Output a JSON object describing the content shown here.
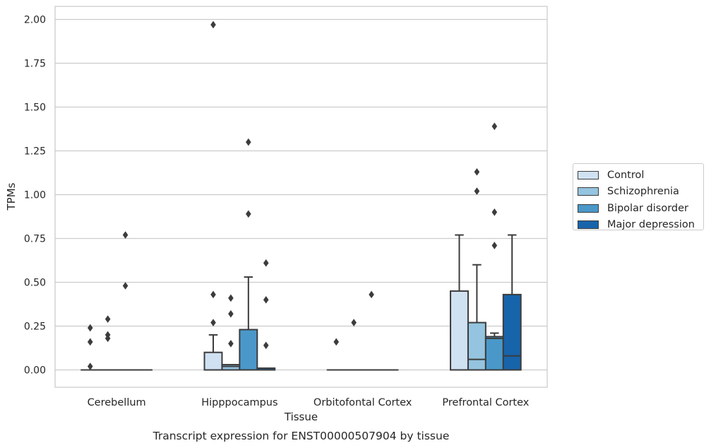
{
  "chart_data": {
    "type": "box",
    "caption": "Transcript expression for ENST00000507904 by tissue",
    "xlabel": "Tissue",
    "ylabel": "TPMs",
    "ylim": [
      -0.1,
      2.07
    ],
    "yticks": [
      "0.00",
      "0.25",
      "0.50",
      "0.75",
      "1.00",
      "1.25",
      "1.50",
      "1.75",
      "2.00"
    ],
    "categories": [
      "Cerebellum",
      "Hipppocampus",
      "Orbitofontal Cortex",
      "Prefrontal Cortex"
    ],
    "grid": true,
    "legend_position": "right",
    "series": [
      {
        "name": "Control",
        "color": "#d0e1f2",
        "boxes": [
          {
            "q1": 0,
            "median": 0,
            "q3": 0,
            "whisker_low": 0,
            "whisker_high": 0,
            "outliers": [
              0.16,
              0.24,
              0.02
            ]
          },
          {
            "q1": 0,
            "median": 0,
            "q3": 0.1,
            "whisker_low": 0,
            "whisker_high": 0.2,
            "outliers": [
              1.97,
              0.43,
              0.27
            ]
          },
          {
            "q1": 0,
            "median": 0,
            "q3": 0,
            "whisker_low": 0,
            "whisker_high": 0,
            "outliers": [
              0.16
            ]
          },
          {
            "q1": 0,
            "median": 0,
            "q3": 0.45,
            "whisker_low": 0,
            "whisker_high": 0.77,
            "outliers": []
          }
        ]
      },
      {
        "name": "Schizophrenia",
        "color": "#94c4df",
        "boxes": [
          {
            "q1": 0,
            "median": 0,
            "q3": 0,
            "whisker_low": 0,
            "whisker_high": 0,
            "outliers": [
              0.29,
              0.2,
              0.18
            ]
          },
          {
            "q1": 0,
            "median": 0.02,
            "q3": 0.03,
            "whisker_low": 0,
            "whisker_high": 0.03,
            "outliers": [
              0.41,
              0.32,
              0.15
            ]
          },
          {
            "q1": 0,
            "median": 0,
            "q3": 0,
            "whisker_low": 0,
            "whisker_high": 0,
            "outliers": [
              0.27
            ]
          },
          {
            "q1": 0,
            "median": 0.06,
            "q3": 0.27,
            "whisker_low": 0,
            "whisker_high": 0.6,
            "outliers": [
              1.13,
              1.02
            ]
          }
        ]
      },
      {
        "name": "Bipolar disorder",
        "color": "#4a98c9",
        "boxes": [
          {
            "q1": 0,
            "median": 0,
            "q3": 0,
            "whisker_low": 0,
            "whisker_high": 0,
            "outliers": [
              0.77,
              0.48
            ]
          },
          {
            "q1": 0,
            "median": 0,
            "q3": 0.23,
            "whisker_low": 0,
            "whisker_high": 0.53,
            "outliers": [
              1.3,
              0.89
            ]
          },
          {
            "q1": 0,
            "median": 0,
            "q3": 0,
            "whisker_low": 0,
            "whisker_high": 0,
            "outliers": [
              0.43
            ]
          },
          {
            "q1": 0,
            "median": 0.18,
            "q3": 0.19,
            "whisker_low": 0,
            "whisker_high": 0.21,
            "outliers": [
              1.39,
              0.9,
              0.71
            ]
          }
        ]
      },
      {
        "name": "Major depression",
        "color": "#1764ab",
        "boxes": [
          {
            "q1": 0,
            "median": 0,
            "q3": 0,
            "whisker_low": 0,
            "whisker_high": 0,
            "outliers": []
          },
          {
            "q1": 0,
            "median": 0,
            "q3": 0.01,
            "whisker_low": 0,
            "whisker_high": 0.01,
            "outliers": [
              0.61,
              0.4,
              0.14
            ]
          },
          {
            "q1": 0,
            "median": 0,
            "q3": 0,
            "whisker_low": 0,
            "whisker_high": 0,
            "outliers": []
          },
          {
            "q1": 0,
            "median": 0.08,
            "q3": 0.43,
            "whisker_low": 0,
            "whisker_high": 0.77,
            "outliers": []
          }
        ]
      }
    ]
  }
}
